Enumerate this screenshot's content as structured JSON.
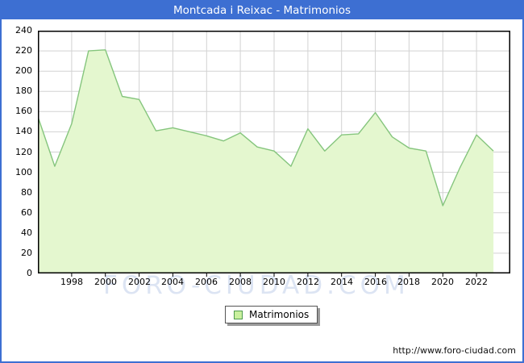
{
  "title": "Montcada i Reixac - Matrimonios",
  "legend": {
    "label": "Matrimonios"
  },
  "watermark": "FORO-CIUDAD.COM",
  "footer": {
    "url": "http://www.foro-ciudad.com"
  },
  "colors": {
    "accent_blue": "#3d6fd2",
    "area_fill": "#e4f7cf",
    "line_green": "#85c57d",
    "grid_gray": "#d2d2d2",
    "frame_black": "#000000",
    "watermark_blue": "#dce4f3",
    "legend_swatch_fill": "#c9f09e",
    "legend_swatch_border": "#4e9a4e"
  },
  "chart_data": {
    "type": "area",
    "title": "Montcada i Reixac - Matrimonios",
    "series_name": "Matrimonios",
    "x": [
      1996,
      1997,
      1998,
      1999,
      2000,
      2001,
      2002,
      2003,
      2004,
      2005,
      2006,
      2007,
      2008,
      2009,
      2010,
      2011,
      2012,
      2013,
      2014,
      2015,
      2016,
      2017,
      2018,
      2019,
      2020,
      2021,
      2022,
      2023
    ],
    "values": [
      155,
      106,
      148,
      220,
      221,
      175,
      172,
      141,
      144,
      140,
      136,
      131,
      139,
      125,
      121,
      106,
      143,
      121,
      137,
      138,
      159,
      135,
      124,
      121,
      67,
      104,
      137,
      121
    ],
    "xlim": [
      1996,
      2024
    ],
    "ylim": [
      0,
      240
    ],
    "ytick_step": 20,
    "ytick_labels": [
      0,
      20,
      40,
      60,
      80,
      100,
      120,
      140,
      160,
      180,
      200,
      220,
      240
    ],
    "xtick_labels": [
      1998,
      2000,
      2002,
      2004,
      2006,
      2008,
      2010,
      2012,
      2014,
      2016,
      2018,
      2020,
      2022
    ],
    "grid": true,
    "legend_position": "bottom-center"
  }
}
